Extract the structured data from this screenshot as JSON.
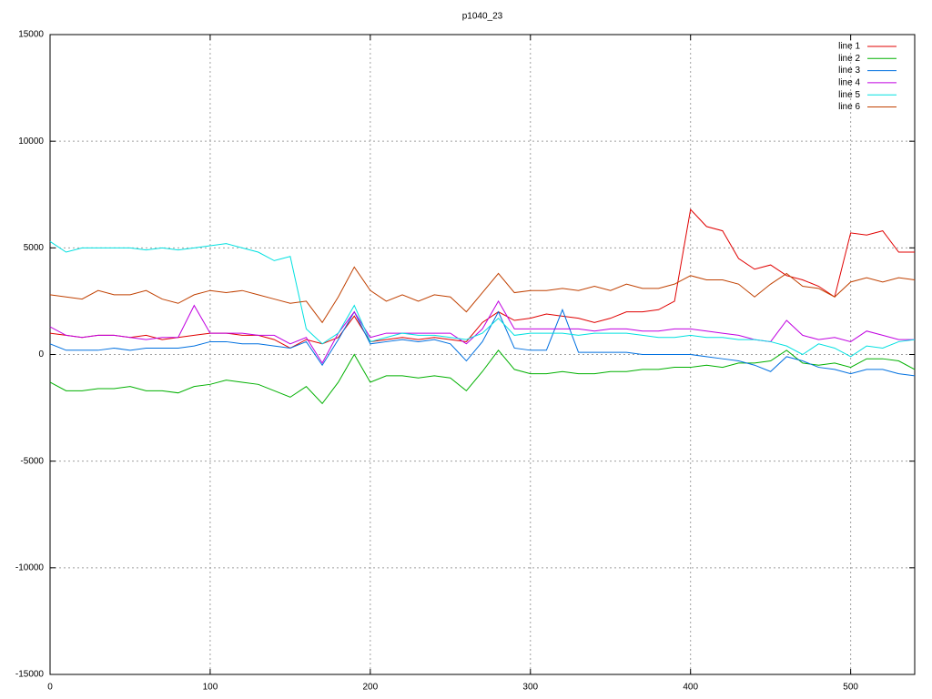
{
  "chart_data": {
    "type": "line",
    "title": "p1040_23",
    "x": [
      0,
      10,
      20,
      30,
      40,
      50,
      60,
      70,
      80,
      90,
      100,
      110,
      120,
      130,
      140,
      150,
      160,
      170,
      180,
      190,
      200,
      210,
      220,
      230,
      240,
      250,
      260,
      270,
      280,
      290,
      300,
      310,
      320,
      330,
      340,
      350,
      360,
      370,
      380,
      390,
      400,
      410,
      420,
      430,
      440,
      450,
      460,
      470,
      480,
      490,
      500,
      510,
      520,
      530,
      540
    ],
    "xlim": [
      0,
      540
    ],
    "xticks": [
      0,
      100,
      200,
      300,
      400,
      500
    ],
    "ylim": [
      -15000,
      15000
    ],
    "yticks": [
      -15000,
      -10000,
      -5000,
      0,
      5000,
      10000,
      15000
    ],
    "grid": true,
    "legend": "top-right",
    "series": [
      {
        "name": "line 1",
        "color": "#e00000",
        "values": [
          1000,
          900,
          800,
          900,
          900,
          800,
          900,
          700,
          800,
          900,
          1000,
          1000,
          900,
          900,
          700,
          300,
          700,
          500,
          800,
          1800,
          600,
          700,
          800,
          700,
          800,
          700,
          600,
          1500,
          2000,
          1600,
          1700,
          1900,
          1800,
          1700,
          1500,
          1700,
          2000,
          2000,
          2100,
          2500,
          6800,
          6000,
          5800,
          4500,
          4000,
          4200,
          3700,
          3500,
          3200,
          2700,
          5700,
          5600,
          5800,
          4800,
          4800
        ]
      },
      {
        "name": "line 2",
        "color": "#00b000",
        "values": [
          -1300,
          -1700,
          -1700,
          -1600,
          -1600,
          -1500,
          -1700,
          -1700,
          -1800,
          -1500,
          -1400,
          -1200,
          -1300,
          -1400,
          -1700,
          -2000,
          -1500,
          -2300,
          -1300,
          0,
          -1300,
          -1000,
          -1000,
          -1100,
          -1000,
          -1100,
          -1700,
          -800,
          200,
          -700,
          -900,
          -900,
          -800,
          -900,
          -900,
          -800,
          -800,
          -700,
          -700,
          -600,
          -600,
          -500,
          -600,
          -400,
          -400,
          -300,
          200,
          -400,
          -500,
          -400,
          -600,
          -200,
          -200,
          -300,
          -700
        ]
      },
      {
        "name": "line 3",
        "color": "#0070e0",
        "values": [
          500,
          200,
          200,
          200,
          300,
          200,
          300,
          300,
          300,
          400,
          600,
          600,
          500,
          500,
          400,
          300,
          600,
          -500,
          700,
          2000,
          500,
          600,
          700,
          600,
          700,
          500,
          -300,
          600,
          2000,
          300,
          200,
          200,
          2100,
          100,
          100,
          100,
          100,
          0,
          0,
          0,
          0,
          -100,
          -200,
          -300,
          -500,
          -800,
          -100,
          -300,
          -600,
          -700,
          -900,
          -700,
          -700,
          -900,
          -1000
        ]
      },
      {
        "name": "line 4",
        "color": "#c000e0",
        "values": [
          1300,
          900,
          800,
          900,
          900,
          800,
          700,
          800,
          800,
          2300,
          1000,
          1000,
          1000,
          900,
          900,
          500,
          800,
          -400,
          1000,
          2000,
          800,
          1000,
          1000,
          1000,
          1000,
          1000,
          500,
          1200,
          2500,
          1200,
          1200,
          1200,
          1200,
          1200,
          1100,
          1200,
          1200,
          1100,
          1100,
          1200,
          1200,
          1100,
          1000,
          900,
          700,
          600,
          1600,
          900,
          700,
          800,
          600,
          1100,
          900,
          700,
          700
        ]
      },
      {
        "name": "line 5",
        "color": "#00e0e0",
        "values": [
          5300,
          4800,
          5000,
          5000,
          5000,
          5000,
          4900,
          5000,
          4900,
          5000,
          5100,
          5200,
          5000,
          4800,
          4400,
          4600,
          1200,
          500,
          1000,
          2300,
          600,
          800,
          1000,
          900,
          900,
          800,
          700,
          1000,
          1700,
          900,
          1000,
          1000,
          1000,
          900,
          1000,
          1000,
          1000,
          900,
          800,
          800,
          900,
          800,
          800,
          700,
          700,
          600,
          400,
          0,
          500,
          300,
          -100,
          400,
          300,
          600,
          700
        ]
      },
      {
        "name": "line 6",
        "color": "#c04000",
        "values": [
          2800,
          2700,
          2600,
          3000,
          2800,
          2800,
          3000,
          2600,
          2400,
          2800,
          3000,
          2900,
          3000,
          2800,
          2600,
          2400,
          2500,
          1500,
          2700,
          4100,
          3000,
          2500,
          2800,
          2500,
          2800,
          2700,
          2000,
          2900,
          3800,
          2900,
          3000,
          3000,
          3100,
          3000,
          3200,
          3000,
          3300,
          3100,
          3100,
          3300,
          3700,
          3500,
          3500,
          3300,
          2700,
          3300,
          3800,
          3200,
          3100,
          2700,
          3400,
          3600,
          3400,
          3600,
          3500
        ]
      }
    ]
  }
}
